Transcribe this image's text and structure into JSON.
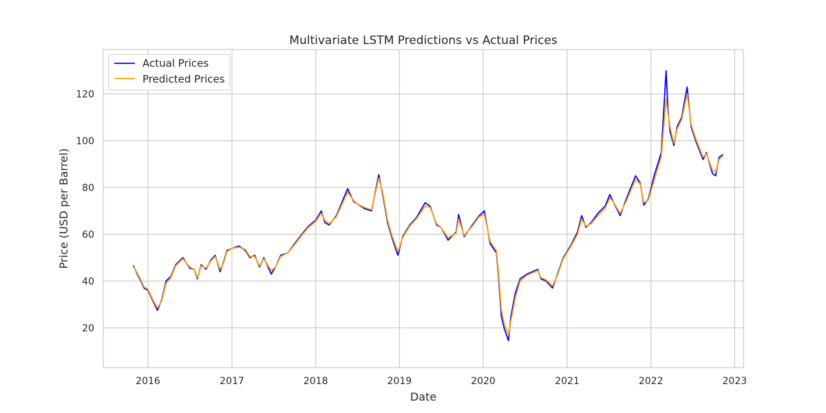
{
  "chart_data": {
    "type": "line",
    "title": "Multivariate LSTM Predictions vs Actual Prices",
    "xlabel": "Date",
    "ylabel": "Price (USD per Barrel)",
    "x_axis_kind": "date",
    "xlim": [
      "2015-06-20",
      "2023-02-08"
    ],
    "ylim": [
      3,
      139
    ],
    "x_ticks": [
      "2016-01-01",
      "2017-01-01",
      "2018-01-01",
      "2019-01-01",
      "2020-01-01",
      "2021-01-01",
      "2022-01-01",
      "2023-01-01"
    ],
    "x_tick_labels": [
      "2016",
      "2017",
      "2018",
      "2019",
      "2020",
      "2021",
      "2022",
      "2023"
    ],
    "y_ticks": [
      20,
      40,
      60,
      80,
      100,
      120
    ],
    "y_tick_labels": [
      "20",
      "40",
      "60",
      "80",
      "100",
      "120"
    ],
    "grid": true,
    "legend_position": "top-left",
    "x": [
      "2015-10-30",
      "2015-11-15",
      "2015-12-01",
      "2015-12-15",
      "2016-01-01",
      "2016-01-20",
      "2016-02-11",
      "2016-03-01",
      "2016-03-20",
      "2016-04-10",
      "2016-05-01",
      "2016-06-01",
      "2016-06-15",
      "2016-07-01",
      "2016-07-20",
      "2016-08-03",
      "2016-08-20",
      "2016-09-10",
      "2016-10-01",
      "2016-10-20",
      "2016-11-10",
      "2016-11-25",
      "2016-12-10",
      "2017-01-01",
      "2017-02-01",
      "2017-03-01",
      "2017-03-20",
      "2017-04-10",
      "2017-05-01",
      "2017-05-20",
      "2017-06-21",
      "2017-07-10",
      "2017-08-01",
      "2017-09-01",
      "2017-10-01",
      "2017-11-01",
      "2017-12-01",
      "2018-01-01",
      "2018-01-25",
      "2018-02-10",
      "2018-03-01",
      "2018-04-01",
      "2018-05-20",
      "2018-06-15",
      "2018-07-01",
      "2018-08-01",
      "2018-09-01",
      "2018-10-03",
      "2018-10-20",
      "2018-11-10",
      "2018-12-01",
      "2018-12-25",
      "2019-01-15",
      "2019-02-15",
      "2019-03-15",
      "2019-04-23",
      "2019-05-15",
      "2019-06-12",
      "2019-07-01",
      "2019-08-01",
      "2019-09-05",
      "2019-09-16",
      "2019-10-10",
      "2019-11-15",
      "2019-12-15",
      "2020-01-06",
      "2020-01-31",
      "2020-02-28",
      "2020-03-09",
      "2020-03-20",
      "2020-04-01",
      "2020-04-20",
      "2020-05-01",
      "2020-05-20",
      "2020-06-10",
      "2020-07-10",
      "2020-08-26",
      "2020-09-08",
      "2020-10-01",
      "2020-10-29",
      "2020-11-20",
      "2020-12-15",
      "2021-01-15",
      "2021-02-15",
      "2021-03-05",
      "2021-03-23",
      "2021-04-15",
      "2021-05-15",
      "2021-06-15",
      "2021-07-06",
      "2021-07-20",
      "2021-08-20",
      "2021-09-15",
      "2021-10-26",
      "2021-11-15",
      "2021-12-01",
      "2021-12-20",
      "2022-01-15",
      "2022-02-15",
      "2022-03-08",
      "2022-03-16",
      "2022-03-25",
      "2022-04-11",
      "2022-04-25",
      "2022-05-15",
      "2022-06-08",
      "2022-06-25",
      "2022-07-15",
      "2022-08-16",
      "2022-08-31",
      "2022-09-26",
      "2022-10-10",
      "2022-10-25",
      "2022-11-10"
    ],
    "series": [
      {
        "name": "Actual Prices",
        "color": "#0000ff",
        "values": [
          46.5,
          43,
          40,
          37,
          36,
          32,
          27.5,
          32,
          40,
          42,
          47,
          50,
          48,
          45.5,
          45,
          41,
          47,
          45,
          49,
          51,
          44,
          48,
          53,
          54,
          55,
          53,
          50,
          51,
          46,
          50,
          43,
          46,
          51,
          52,
          56,
          60,
          63.5,
          66,
          70,
          65,
          64,
          68,
          79.5,
          74,
          73,
          71,
          70,
          85.5,
          77,
          65,
          58,
          51,
          59,
          64,
          67,
          73.5,
          72,
          64,
          63,
          57.5,
          61,
          68.5,
          59,
          64,
          68,
          70,
          56,
          52,
          40,
          25,
          20,
          14.5,
          25,
          35,
          41,
          43,
          45,
          41,
          40,
          37,
          43,
          50,
          55,
          61,
          68,
          63,
          65,
          69,
          72,
          77,
          74,
          68,
          75,
          85,
          82,
          72.5,
          75,
          85,
          95,
          130,
          114,
          104,
          98,
          106,
          110,
          123,
          106,
          100,
          92,
          95,
          86,
          85,
          93,
          94
        ]
      },
      {
        "name": "Predicted Prices",
        "color": "#ffa500",
        "values": [
          46,
          43.5,
          40.5,
          37.5,
          36.5,
          32.5,
          28.5,
          31.5,
          39,
          41.5,
          46.5,
          49.5,
          48,
          46,
          45,
          41.5,
          46.5,
          45.5,
          48.5,
          50.5,
          45,
          47.5,
          52.5,
          54,
          54.5,
          53.5,
          50.5,
          50.5,
          46.5,
          49.5,
          44.5,
          46,
          50.5,
          52,
          55.5,
          59.5,
          63,
          65.5,
          69,
          66,
          64.5,
          67.5,
          78,
          74.5,
          73,
          71.5,
          70.5,
          84,
          78,
          66,
          59,
          52.5,
          58.5,
          63.5,
          66.5,
          72,
          71.5,
          64.5,
          63,
          58.5,
          60.5,
          66.5,
          59.5,
          63.5,
          67.5,
          68.5,
          57,
          53,
          42,
          28,
          22,
          17,
          23,
          33,
          40,
          42.5,
          44.5,
          41.5,
          40.5,
          38,
          42.5,
          49.5,
          54.5,
          60,
          66.5,
          63.5,
          64.5,
          68,
          71,
          75.5,
          74,
          69,
          74,
          83.5,
          81.5,
          73.5,
          74.5,
          83,
          93,
          118,
          112,
          106,
          99,
          105,
          109,
          120,
          107,
          101,
          93,
          94.5,
          87.5,
          86.5,
          92,
          93.5
        ]
      }
    ]
  }
}
